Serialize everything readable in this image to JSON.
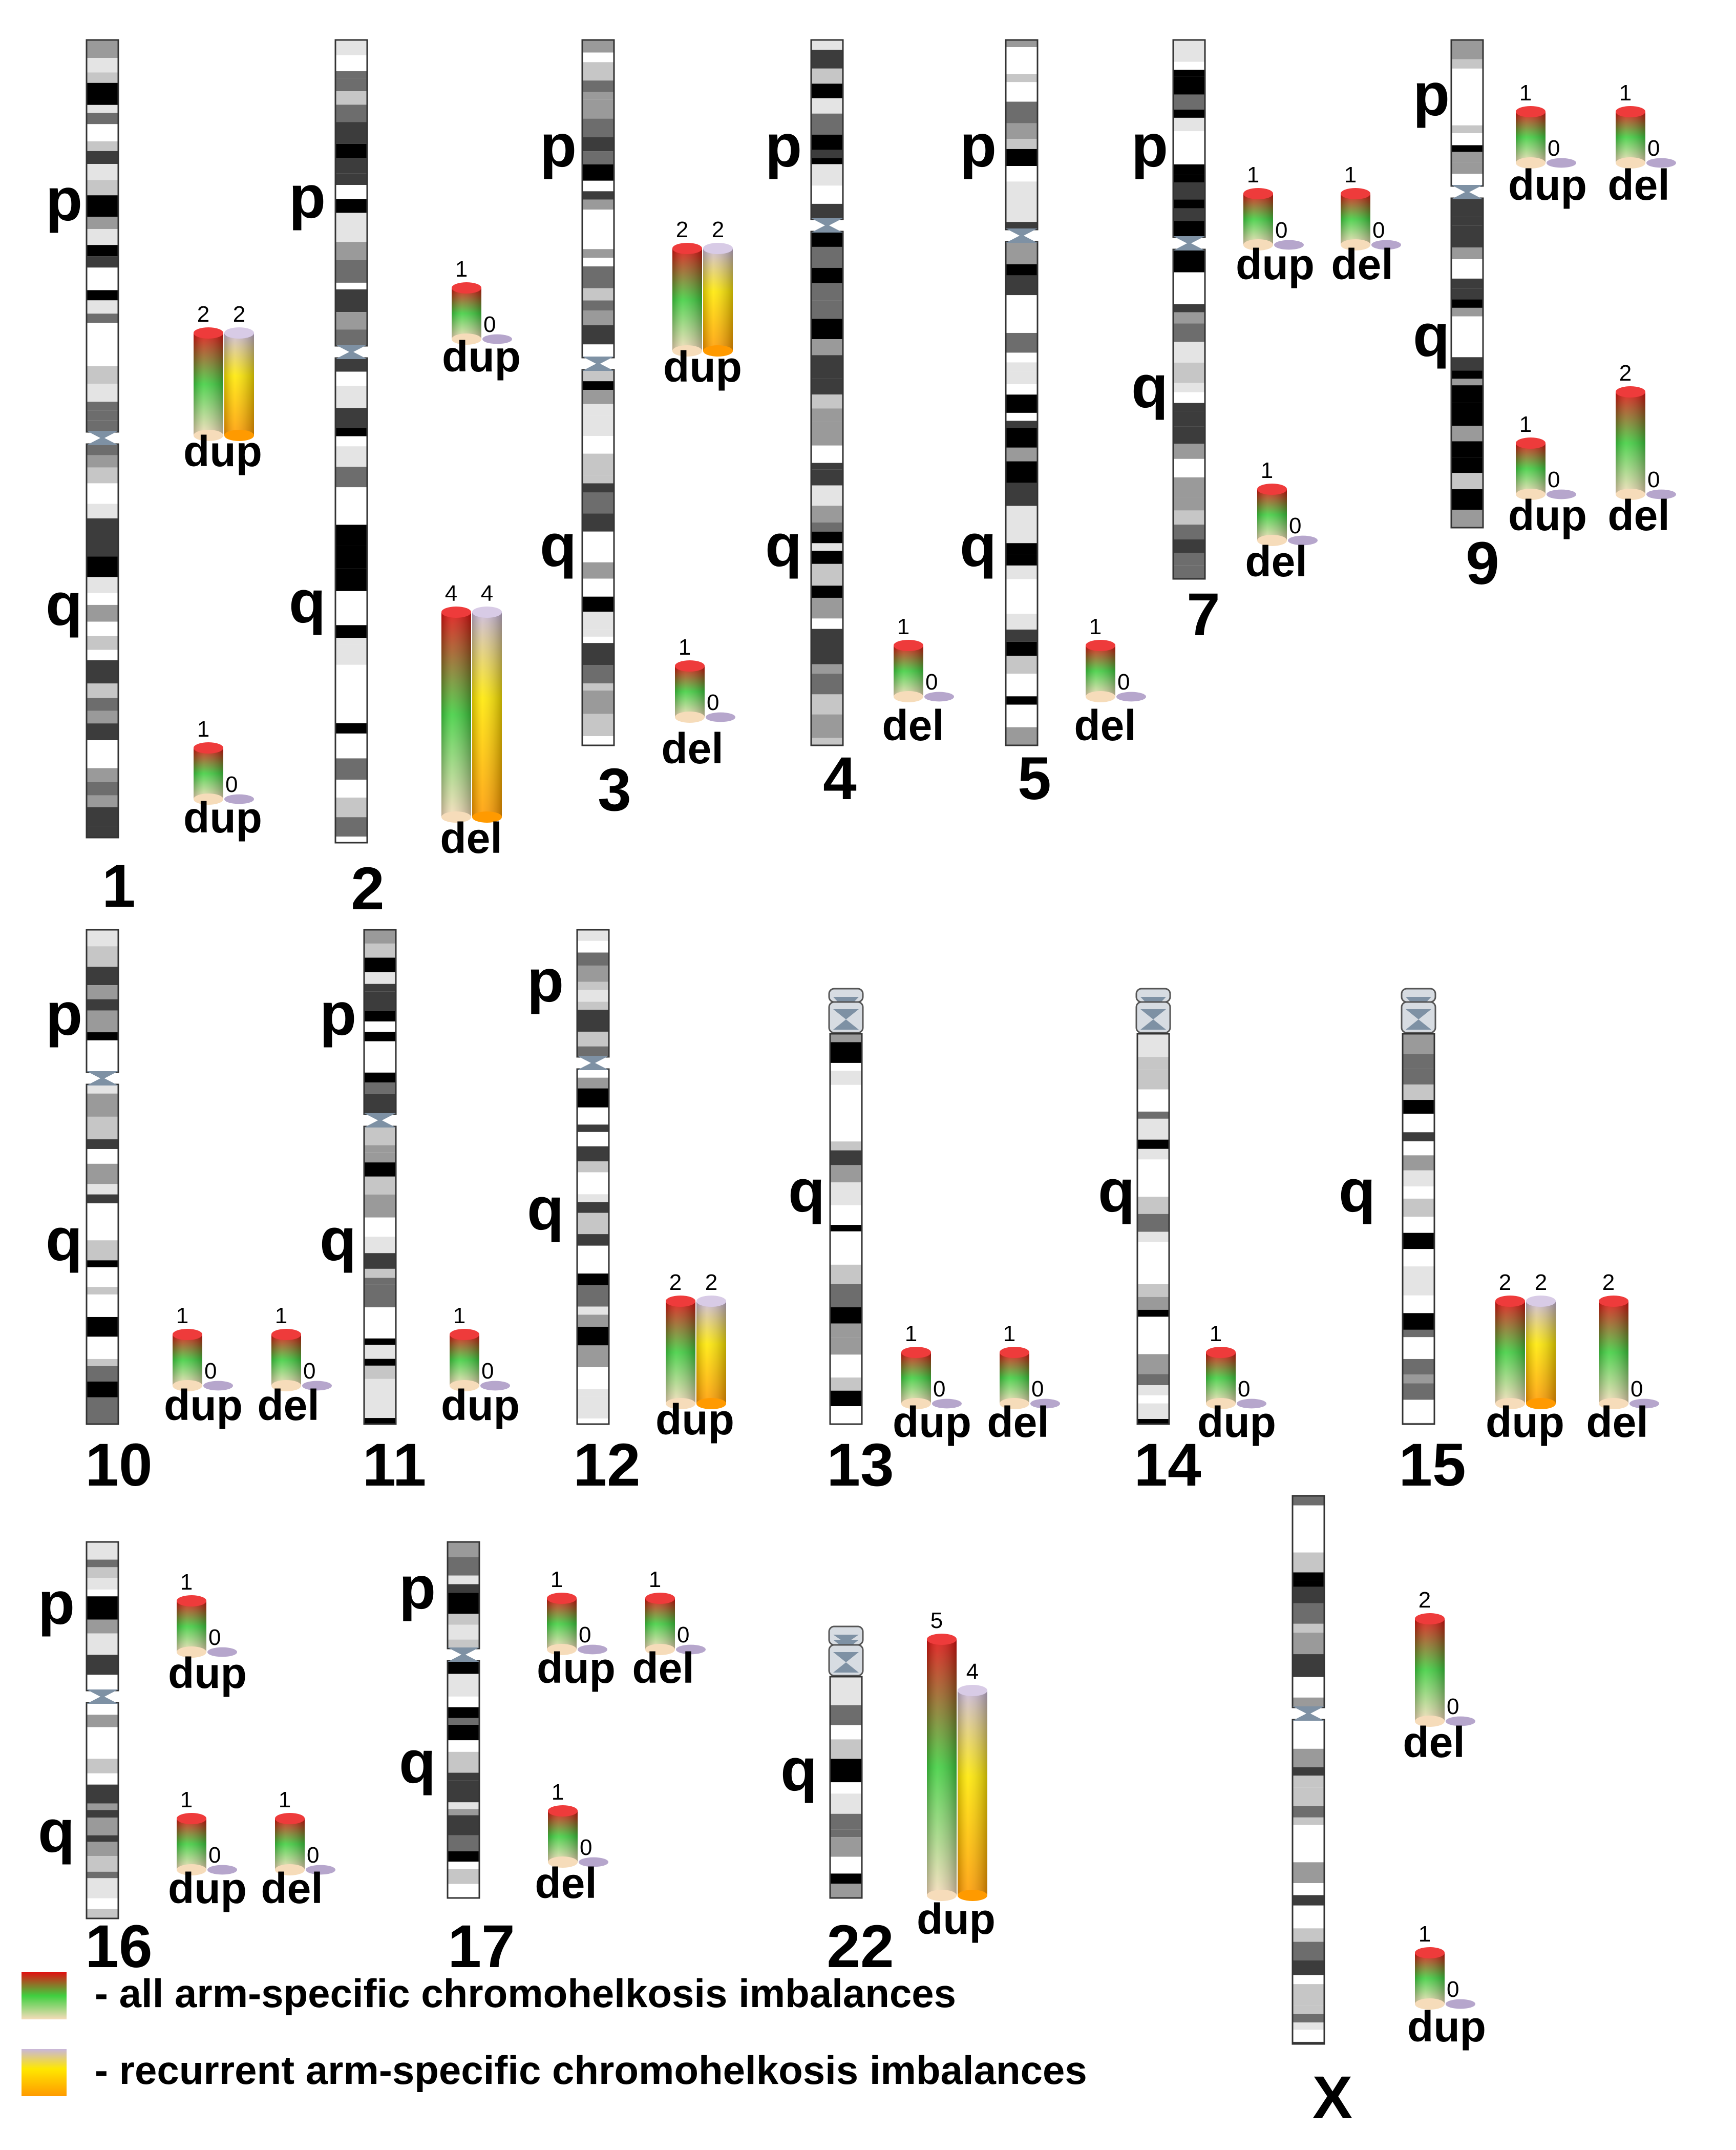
{
  "legend": [
    {
      "gradient": "all",
      "label": "- all arm-specific chromohelkosis imbalances"
    },
    {
      "gradient": "recurrent",
      "label": "- recurrent arm-specific chromohelkosis imbalances"
    }
  ],
  "colors": {
    "all_gradient": [
      "#e01010",
      "#3fcf3f",
      "#f6dcba"
    ],
    "recurrent_gradient": [
      "#c9b7db",
      "#ffe800",
      "#ff9a00"
    ],
    "baseline_disc": "#b6a6cc",
    "acrocentric_stalk": "#7e91a4"
  },
  "chromosomes": [
    {
      "id": "1",
      "label": "1",
      "arms": [
        "p",
        "q"
      ],
      "acrocentric": false,
      "imbalances": [
        {
          "arm": "p",
          "type": "dup",
          "type_label": "dup",
          "all": 2,
          "recurrent": 2
        },
        {
          "arm": "q",
          "type": "dup",
          "type_label": "dup",
          "all": 1,
          "recurrent": 0
        }
      ]
    },
    {
      "id": "2",
      "label": "2",
      "arms": [
        "p",
        "q"
      ],
      "acrocentric": false,
      "imbalances": [
        {
          "arm": "p",
          "type": "dup",
          "type_label": "dup",
          "all": 1,
          "recurrent": 0
        },
        {
          "arm": "q",
          "type": "del",
          "type_label": "del",
          "all": 4,
          "recurrent": 4
        }
      ]
    },
    {
      "id": "3",
      "label": "3",
      "arms": [
        "p",
        "q"
      ],
      "acrocentric": false,
      "imbalances": [
        {
          "arm": "p",
          "type": "dup",
          "type_label": "dup",
          "all": 2,
          "recurrent": 2
        },
        {
          "arm": "q",
          "type": "del",
          "type_label": "del",
          "all": 1,
          "recurrent": 0
        }
      ]
    },
    {
      "id": "4",
      "label": "4",
      "arms": [
        "p",
        "q"
      ],
      "acrocentric": false,
      "imbalances": [
        {
          "arm": "q",
          "type": "del",
          "type_label": "del",
          "all": 1,
          "recurrent": 0
        }
      ]
    },
    {
      "id": "5",
      "label": "5",
      "arms": [
        "p",
        "q"
      ],
      "acrocentric": false,
      "imbalances": [
        {
          "arm": "q",
          "type": "del",
          "type_label": "del",
          "all": 1,
          "recurrent": 0
        }
      ]
    },
    {
      "id": "7",
      "label": "7",
      "arms": [
        "p",
        "q"
      ],
      "acrocentric": false,
      "imbalances": [
        {
          "arm": "p",
          "type": "dup",
          "type_label": "dup",
          "all": 1,
          "recurrent": 0
        },
        {
          "arm": "p",
          "type": "del",
          "type_label": "del",
          "all": 1,
          "recurrent": 0
        },
        {
          "arm": "q",
          "type": "del",
          "type_label": "del",
          "all": 1,
          "recurrent": 0
        }
      ]
    },
    {
      "id": "9",
      "label": "9",
      "arms": [
        "p",
        "q"
      ],
      "acrocentric": false,
      "imbalances": [
        {
          "arm": "p",
          "type": "dup",
          "type_label": "dup",
          "all": 1,
          "recurrent": 0
        },
        {
          "arm": "p",
          "type": "del",
          "type_label": "del",
          "all": 1,
          "recurrent": 0
        },
        {
          "arm": "q",
          "type": "dup",
          "type_label": "dup",
          "all": 1,
          "recurrent": 0
        },
        {
          "arm": "q",
          "type": "del",
          "type_label": "del",
          "all": 2,
          "recurrent": 0
        }
      ]
    },
    {
      "id": "10",
      "label": "10",
      "arms": [
        "p",
        "q"
      ],
      "acrocentric": false,
      "imbalances": [
        {
          "arm": "q",
          "type": "dup",
          "type_label": "dup",
          "all": 1,
          "recurrent": 0
        },
        {
          "arm": "q",
          "type": "del",
          "type_label": "del",
          "all": 1,
          "recurrent": 0
        }
      ]
    },
    {
      "id": "11",
      "label": "11",
      "arms": [
        "p",
        "q"
      ],
      "acrocentric": false,
      "imbalances": [
        {
          "arm": "q",
          "type": "dup",
          "type_label": "dup",
          "all": 1,
          "recurrent": 0
        }
      ]
    },
    {
      "id": "12",
      "label": "12",
      "arms": [
        "p",
        "q"
      ],
      "acrocentric": false,
      "imbalances": [
        {
          "arm": "q",
          "type": "dup",
          "type_label": "dup",
          "all": 2,
          "recurrent": 2
        }
      ]
    },
    {
      "id": "13",
      "label": "13",
      "arms": [
        "q"
      ],
      "acrocentric": true,
      "imbalances": [
        {
          "arm": "q",
          "type": "dup",
          "type_label": "dup",
          "all": 1,
          "recurrent": 0
        },
        {
          "arm": "q",
          "type": "del",
          "type_label": "del",
          "all": 1,
          "recurrent": 0
        }
      ]
    },
    {
      "id": "14",
      "label": "14",
      "arms": [
        "q"
      ],
      "acrocentric": true,
      "imbalances": [
        {
          "arm": "q",
          "type": "dup",
          "type_label": "dup",
          "all": 1,
          "recurrent": 0
        }
      ]
    },
    {
      "id": "15",
      "label": "15",
      "arms": [
        "q"
      ],
      "acrocentric": true,
      "imbalances": [
        {
          "arm": "q",
          "type": "dup",
          "type_label": "dup",
          "all": 2,
          "recurrent": 2
        },
        {
          "arm": "q",
          "type": "del",
          "type_label": "del",
          "all": 2,
          "recurrent": 0
        }
      ]
    },
    {
      "id": "16",
      "label": "16",
      "arms": [
        "p",
        "q"
      ],
      "acrocentric": false,
      "imbalances": [
        {
          "arm": "p",
          "type": "dup",
          "type_label": "dup",
          "all": 1,
          "recurrent": 0
        },
        {
          "arm": "q",
          "type": "dup",
          "type_label": "dup",
          "all": 1,
          "recurrent": 0
        },
        {
          "arm": "q",
          "type": "del",
          "type_label": "del",
          "all": 1,
          "recurrent": 0
        }
      ]
    },
    {
      "id": "17",
      "label": "17",
      "arms": [
        "p",
        "q"
      ],
      "acrocentric": false,
      "imbalances": [
        {
          "arm": "p",
          "type": "dup",
          "type_label": "dup",
          "all": 1,
          "recurrent": 0
        },
        {
          "arm": "p",
          "type": "del",
          "type_label": "del",
          "all": 1,
          "recurrent": 0
        },
        {
          "arm": "q",
          "type": "del",
          "type_label": "del",
          "all": 1,
          "recurrent": 0
        }
      ]
    },
    {
      "id": "22",
      "label": "22",
      "arms": [
        "q"
      ],
      "acrocentric": true,
      "imbalances": [
        {
          "arm": "q",
          "type": "dup",
          "type_label": "dup",
          "all": 5,
          "recurrent": 4
        }
      ]
    },
    {
      "id": "X",
      "label": "X",
      "arms": [],
      "acrocentric": false,
      "imbalances": [
        {
          "arm": "p",
          "type": "del",
          "type_label": "del",
          "all": 2,
          "recurrent": 0
        },
        {
          "arm": "q",
          "type": "dup",
          "type_label": "dup",
          "all": 1,
          "recurrent": 0
        }
      ]
    }
  ]
}
